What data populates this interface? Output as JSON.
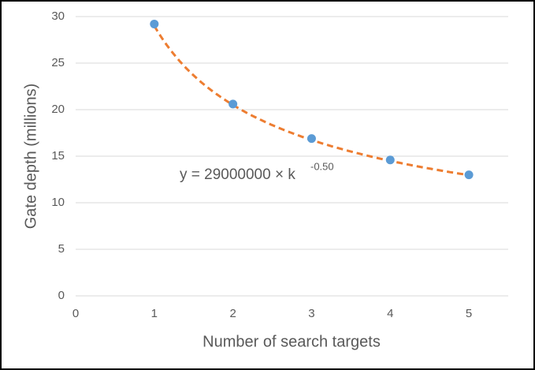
{
  "chart_data": {
    "type": "scatter",
    "x_label": "Number of search targets",
    "y_label": "Gate depth (millions)",
    "x": [
      1,
      2,
      3,
      4,
      5
    ],
    "series": [
      {
        "color": "#5b9bd5",
        "values": [
          29.2,
          20.6,
          16.9,
          14.6,
          13.0
        ]
      }
    ],
    "xlim": [
      0,
      5.5
    ],
    "xticks": [
      0,
      1,
      2,
      3,
      4,
      5
    ],
    "ylim": [
      0,
      30
    ],
    "yticks": [
      0,
      5,
      10,
      15,
      20,
      25,
      30
    ],
    "grid": true,
    "trendline": {
      "kind": "power",
      "coefficient": 29,
      "exponent": -0.5,
      "color": "#ed7d31",
      "dashed": true
    },
    "annotation": {
      "text": "y = 29000000 × k",
      "superscript": "-0.50"
    }
  }
}
